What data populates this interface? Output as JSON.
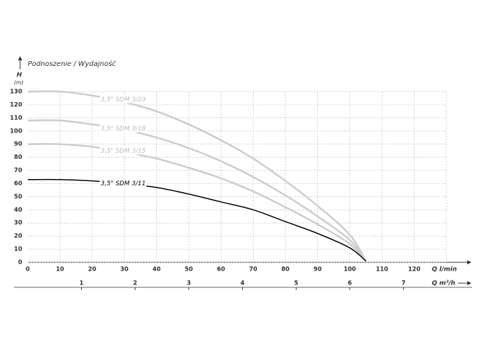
{
  "chart_data": {
    "type": "line",
    "title": "Podnoszenie / Wydajność",
    "y_label": "H",
    "y_unit": "(m)",
    "x_label": "Q l/min",
    "x2_label": "Q m³/h",
    "x": [
      0,
      10,
      20,
      30,
      40,
      50,
      60,
      70,
      80,
      90,
      100,
      105
    ],
    "series": [
      {
        "name": "3,5\" SDM 3/23",
        "color": "#cccccc",
        "values": [
          130,
          130,
          127,
          122,
          115,
          105,
          93,
          79,
          62,
          43,
          21,
          1
        ]
      },
      {
        "name": "3,5\" SDM 3/18",
        "color": "#cccccc",
        "values": [
          108,
          108,
          105,
          101,
          95,
          87,
          77,
          65,
          51,
          35,
          17,
          1
        ]
      },
      {
        "name": "3,5\" SDM 3/15",
        "color": "#cccccc",
        "values": [
          90,
          90,
          88,
          84,
          79,
          72,
          64,
          54,
          42,
          29,
          14,
          1
        ]
      },
      {
        "name": "3,5\" SDM 3/11",
        "color": "#000000",
        "values": [
          63,
          63,
          62,
          60,
          57,
          52,
          46,
          40,
          31,
          22,
          11,
          1
        ]
      }
    ],
    "xlim": [
      0,
      130
    ],
    "xticks": [
      0,
      10,
      20,
      30,
      40,
      50,
      60,
      70,
      80,
      90,
      100,
      110,
      120
    ],
    "x2lim": [
      0,
      7.8
    ],
    "x2ticks": [
      1,
      2,
      3,
      4,
      5,
      6,
      7
    ],
    "ylim": [
      0,
      130
    ],
    "yticks": [
      0,
      10,
      20,
      30,
      40,
      50,
      60,
      70,
      80,
      90,
      100,
      110,
      120,
      130
    ],
    "grid": true
  }
}
